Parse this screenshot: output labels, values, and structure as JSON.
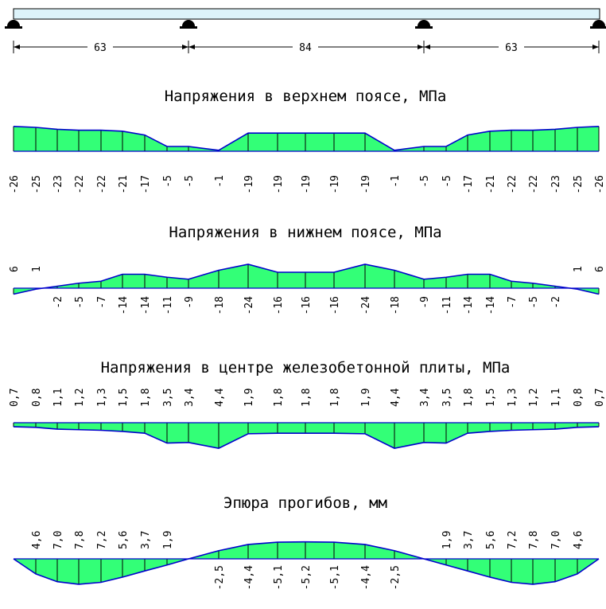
{
  "beam": {
    "spans": [
      "63",
      "84",
      "63"
    ]
  },
  "colors": {
    "fill": "#33ff77",
    "stroke": "#0000cc",
    "beam_fill": "#ddf3fa",
    "ordinate": "#000000"
  },
  "panels": [
    {
      "id": "top-chord",
      "title": "Напряжения в верхнем поясе, МПа",
      "values": [
        -26,
        -25,
        -23,
        -22,
        -22,
        -21,
        -17,
        -5,
        -5,
        -1,
        -19,
        -19,
        -19,
        -19,
        -19,
        -1,
        -5,
        -5,
        -17,
        -21,
        -22,
        -22,
        -23,
        -25,
        -26
      ],
      "labels": [
        "-26",
        "-25",
        "-23",
        "-22",
        "-22",
        "-21",
        "-17",
        "-5",
        "-5",
        "-1",
        "-19",
        "-19",
        "-19",
        "-19",
        "-19",
        "-1",
        "-5",
        "-5",
        "-17",
        "-21",
        "-22",
        "-22",
        "-23",
        "-25",
        "-26"
      ]
    },
    {
      "id": "bottom-chord",
      "title": "Напряжения в нижнем поясе, МПа",
      "values": [
        6,
        1,
        -2,
        -5,
        -7,
        -14,
        -14,
        -11,
        -9,
        -18,
        -24,
        -16,
        -16,
        -16,
        -24,
        -18,
        -9,
        -11,
        -14,
        -14,
        -7,
        -5,
        -2,
        1,
        6
      ],
      "labels": [
        "6",
        "1",
        "-2",
        "-5",
        "-7",
        "-14",
        "-14",
        "-11",
        "-9",
        "-18",
        "-24",
        "-16",
        "-16",
        "-16",
        "-24",
        "-18",
        "-9",
        "-11",
        "-14",
        "-14",
        "-7",
        "-5",
        "-2",
        "1",
        "6"
      ]
    },
    {
      "id": "slab-center",
      "title": "Напряжения в центре железобетонной плиты, МПа",
      "values": [
        0.7,
        0.8,
        1.1,
        1.2,
        1.3,
        1.5,
        1.8,
        3.5,
        3.4,
        4.4,
        1.9,
        1.8,
        1.8,
        1.8,
        1.9,
        4.4,
        3.4,
        3.5,
        1.8,
        1.5,
        1.3,
        1.2,
        1.1,
        0.8,
        0.7
      ],
      "labels": [
        "0,7",
        "0,8",
        "1,1",
        "1,2",
        "1,3",
        "1,5",
        "1,8",
        "3,5",
        "3,4",
        "4,4",
        "1,9",
        "1,8",
        "1,8",
        "1,8",
        "1,9",
        "4,4",
        "3,4",
        "3,5",
        "1,8",
        "1,5",
        "1,3",
        "1,2",
        "1,1",
        "0,8",
        "0,7"
      ]
    },
    {
      "id": "deflection",
      "title": "Эпюра прогибов, мм",
      "values": [
        0,
        4.6,
        7.0,
        7.8,
        7.2,
        5.6,
        3.7,
        1.9,
        0,
        -2.5,
        -4.4,
        -5.1,
        -5.2,
        -5.1,
        -4.4,
        -2.5,
        0,
        1.9,
        3.7,
        5.6,
        7.2,
        7.8,
        7.0,
        4.6,
        0
      ],
      "labels": [
        "",
        "4,6",
        "7,0",
        "7,8",
        "7,2",
        "5,6",
        "3,7",
        "1,9",
        "",
        "-2,5",
        "-4,4",
        "-5,1",
        "-5,2",
        "-5,1",
        "-4,4",
        "-2,5",
        "",
        "1,9",
        "3,7",
        "5,6",
        "7,2",
        "7,8",
        "7,0",
        "4,6",
        ""
      ]
    }
  ]
}
